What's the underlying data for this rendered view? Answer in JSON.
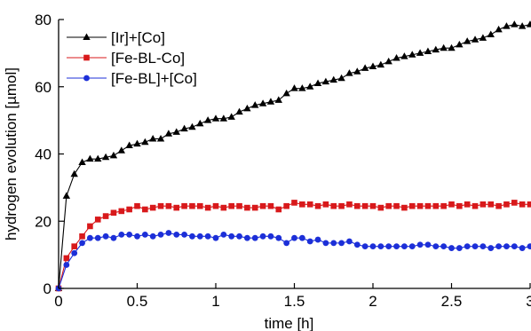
{
  "chart_data": {
    "type": "line",
    "xlabel": "time [h]",
    "ylabel": "hydrogen evolution [µmol]",
    "xlim": [
      0,
      3
    ],
    "ylim": [
      0,
      80
    ],
    "xticks": [
      0,
      0.5,
      1,
      1.5,
      2,
      2.5,
      3
    ],
    "xtick_labels": [
      "0",
      "0.5",
      "1",
      "1.5",
      "2",
      "2.5",
      "3"
    ],
    "yticks": [
      0,
      20,
      40,
      60,
      80
    ],
    "ytick_labels": [
      "0",
      "20",
      "40",
      "60",
      "80"
    ],
    "grid": false,
    "legend_position": "top-left",
    "series": [
      {
        "name": "[Ir]+[Co]",
        "color": "#000000",
        "marker": "triangle",
        "x": [
          0,
          0.05,
          0.1,
          0.15,
          0.2,
          0.25,
          0.3,
          0.35,
          0.4,
          0.45,
          0.5,
          0.55,
          0.6,
          0.65,
          0.7,
          0.75,
          0.8,
          0.85,
          0.9,
          0.95,
          1.0,
          1.05,
          1.1,
          1.15,
          1.2,
          1.25,
          1.3,
          1.35,
          1.4,
          1.45,
          1.5,
          1.55,
          1.6,
          1.65,
          1.7,
          1.75,
          1.8,
          1.85,
          1.9,
          1.95,
          2.0,
          2.05,
          2.1,
          2.15,
          2.2,
          2.25,
          2.3,
          2.35,
          2.4,
          2.45,
          2.5,
          2.55,
          2.6,
          2.65,
          2.7,
          2.75,
          2.8,
          2.85,
          2.9,
          2.95,
          3.0
        ],
        "values": [
          0,
          27.5,
          34,
          37.5,
          38.5,
          38.5,
          39,
          39.5,
          41,
          42.5,
          43,
          43.5,
          44.5,
          44.5,
          46,
          46.5,
          47.5,
          48,
          49,
          50,
          50.5,
          50.5,
          51,
          52.5,
          53.5,
          54.5,
          55,
          55.5,
          56,
          58,
          59.5,
          59.5,
          60,
          61,
          61.5,
          62,
          62.5,
          64,
          64.5,
          65.5,
          66,
          66.5,
          67.5,
          68.5,
          69,
          69.5,
          70,
          70.5,
          71,
          71.5,
          71.5,
          72.5,
          73.5,
          74,
          74.5,
          75.5,
          77,
          78,
          78.5,
          78,
          78.5
        ]
      },
      {
        "name": "[Fe-BL-Co]",
        "color": "#d8191b",
        "marker": "square",
        "x": [
          0,
          0.05,
          0.1,
          0.15,
          0.2,
          0.25,
          0.3,
          0.35,
          0.4,
          0.45,
          0.5,
          0.55,
          0.6,
          0.65,
          0.7,
          0.75,
          0.8,
          0.85,
          0.9,
          0.95,
          1.0,
          1.05,
          1.1,
          1.15,
          1.2,
          1.25,
          1.3,
          1.35,
          1.4,
          1.45,
          1.5,
          1.55,
          1.6,
          1.65,
          1.7,
          1.75,
          1.8,
          1.85,
          1.9,
          1.95,
          2.0,
          2.05,
          2.1,
          2.15,
          2.2,
          2.25,
          2.3,
          2.35,
          2.4,
          2.45,
          2.5,
          2.55,
          2.6,
          2.65,
          2.7,
          2.75,
          2.8,
          2.85,
          2.9,
          2.95,
          3.0
        ],
        "values": [
          0,
          9,
          12.5,
          15.5,
          18.5,
          20.5,
          21.5,
          22.5,
          23,
          23.5,
          24.5,
          23.5,
          24,
          24.5,
          24.5,
          24,
          24.5,
          24.5,
          24.5,
          24,
          24.5,
          24,
          24.5,
          24.5,
          24,
          24,
          24.5,
          24.5,
          23.5,
          24.5,
          25.5,
          25,
          25,
          24.5,
          25,
          24.5,
          24.5,
          25,
          24.5,
          24.5,
          24.5,
          24,
          24.5,
          24.5,
          24,
          24.5,
          24.5,
          24.5,
          24.5,
          24.5,
          25,
          24.5,
          25,
          24.5,
          25,
          25,
          24.5,
          25,
          25.5,
          25,
          25
        ]
      },
      {
        "name": "[Fe-BL]+[Co]",
        "color": "#1c2fd8",
        "marker": "circle",
        "x": [
          0,
          0.05,
          0.1,
          0.15,
          0.2,
          0.25,
          0.3,
          0.35,
          0.4,
          0.45,
          0.5,
          0.55,
          0.6,
          0.65,
          0.7,
          0.75,
          0.8,
          0.85,
          0.9,
          0.95,
          1.0,
          1.05,
          1.1,
          1.15,
          1.2,
          1.25,
          1.3,
          1.35,
          1.4,
          1.45,
          1.5,
          1.55,
          1.6,
          1.65,
          1.7,
          1.75,
          1.8,
          1.85,
          1.9,
          1.95,
          2.0,
          2.05,
          2.1,
          2.15,
          2.2,
          2.25,
          2.3,
          2.35,
          2.4,
          2.45,
          2.5,
          2.55,
          2.6,
          2.65,
          2.7,
          2.75,
          2.8,
          2.85,
          2.9,
          2.95,
          3.0
        ],
        "values": [
          0,
          7,
          10.5,
          13.5,
          15,
          15,
          15.5,
          15,
          16,
          16,
          15.5,
          16,
          15.5,
          16,
          16.5,
          16,
          16,
          15.5,
          15.5,
          15.5,
          15,
          16,
          15.5,
          15.5,
          15,
          15,
          15.5,
          15.5,
          15,
          13.5,
          15,
          15,
          14,
          14.5,
          13.5,
          13.5,
          13.5,
          14,
          13,
          12.5,
          12.5,
          12.5,
          12.5,
          12.5,
          12.5,
          12.5,
          13,
          13,
          12.5,
          12.5,
          12,
          12,
          12.5,
          12.5,
          12.5,
          12,
          12.5,
          12.5,
          12.5,
          12,
          12.5
        ]
      }
    ]
  }
}
